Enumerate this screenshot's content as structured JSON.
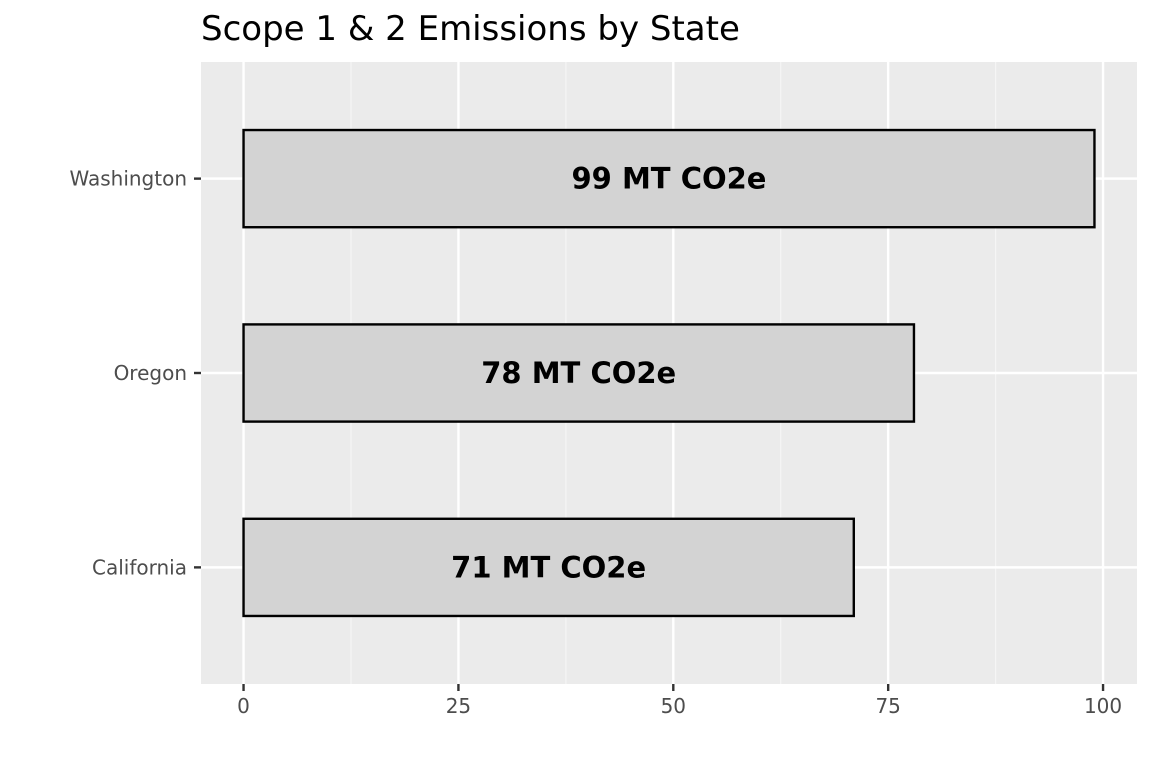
{
  "chart_data": {
    "type": "bar",
    "orientation": "horizontal",
    "title": "Scope 1 & 2 Emissions by State",
    "xlabel": "",
    "ylabel": "",
    "categories": [
      "Washington",
      "Oregon",
      "California"
    ],
    "values": [
      99,
      78,
      71
    ],
    "data_labels": [
      "99 MT CO2e",
      "78 MT CO2e",
      "71 MT CO2e"
    ],
    "xlim": [
      -4.95,
      103.95
    ],
    "x_ticks": [
      0,
      25,
      50,
      75,
      100
    ],
    "x_tick_labels": [
      "0",
      "25",
      "50",
      "75",
      "100"
    ],
    "grid": true,
    "legend": "none",
    "colors": {
      "panel_background": "#ebebeb",
      "grid_major": "#ffffff",
      "grid_minor": "#f5f5f5",
      "bar_fill": "#d3d3d3",
      "bar_outline": "#000000",
      "tick_text": "#4d4d4d",
      "title_text": "#000000"
    }
  }
}
